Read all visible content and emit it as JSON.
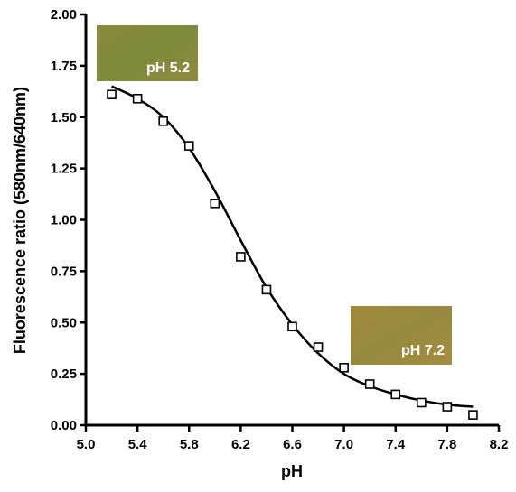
{
  "chart_data": {
    "type": "scatter",
    "x_label": "pH",
    "y_label": "Fluorescence ratio (580nm/640nm)",
    "xlim": [
      5.0,
      8.2
    ],
    "ylim": [
      0,
      2.0
    ],
    "xticks": [
      {
        "value": 5.0,
        "label": "5.0"
      },
      5.4,
      5.8,
      {
        "value": 6.2,
        "label": "6.2"
      },
      6.6,
      {
        "value": 7.0,
        "label": "7.0"
      },
      7.4,
      7.8,
      8.2
    ],
    "yticks": [
      {
        "value": 0,
        "label": "0.00"
      },
      {
        "value": 0.25,
        "label": "0.25"
      },
      {
        "value": 0.5,
        "label": "0.50"
      },
      {
        "value": 0.75,
        "label": "0.75"
      },
      {
        "value": 1.0,
        "label": "1.00"
      },
      {
        "value": 1.25,
        "label": "1.25"
      },
      {
        "value": 1.5,
        "label": "1.50"
      },
      {
        "value": 1.75,
        "label": "1.75"
      },
      {
        "value": 2.0,
        "label": "2.00"
      }
    ],
    "grid": false,
    "series": [
      {
        "mode": "markers",
        "marker": "square",
        "color": "#000000",
        "x": [
          5.2,
          5.4,
          5.6,
          5.8,
          6.0,
          6.2,
          6.4,
          6.6,
          6.8,
          7.0,
          7.2,
          7.4,
          7.6,
          7.8,
          8.0
        ],
        "values": [
          1.61,
          1.59,
          1.48,
          1.36,
          1.08,
          0.82,
          0.66,
          0.48,
          0.38,
          0.28,
          0.2,
          0.15,
          0.11,
          0.09,
          0.05
        ]
      },
      {
        "mode": "line",
        "color": "#000000",
        "x": [
          5.2,
          5.4,
          5.6,
          5.8,
          6.0,
          6.2,
          6.4,
          6.6,
          6.8,
          7.0,
          7.2,
          7.4,
          7.6,
          7.8,
          8.0
        ],
        "values": [
          1.65,
          1.59,
          1.5,
          1.35,
          1.14,
          0.9,
          0.67,
          0.49,
          0.35,
          0.25,
          0.19,
          0.15,
          0.12,
          0.1,
          0.09
        ]
      }
    ],
    "annotations": [
      "pH 5.2",
      "pH 7.2"
    ]
  }
}
